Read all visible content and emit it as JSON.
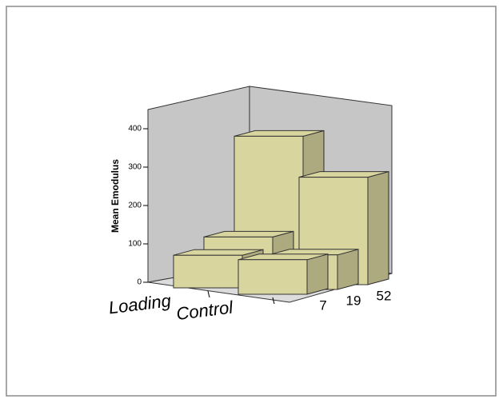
{
  "chart_data": {
    "type": "bar3d",
    "y_label": "Mean Emodulus",
    "categories": [
      "Loading",
      "Control"
    ],
    "series": [
      {
        "name": "7",
        "color": "#d8d59f",
        "values": [
          85,
          90
        ]
      },
      {
        "name": "19",
        "color": "#d8d59f",
        "values": [
          120,
          90
        ]
      },
      {
        "name": "52",
        "color": "#d8d59f",
        "values": [
          370,
          280
        ]
      }
    ],
    "ylim": [
      0,
      400
    ],
    "yticks": [
      0,
      100,
      200,
      300,
      400
    ]
  }
}
